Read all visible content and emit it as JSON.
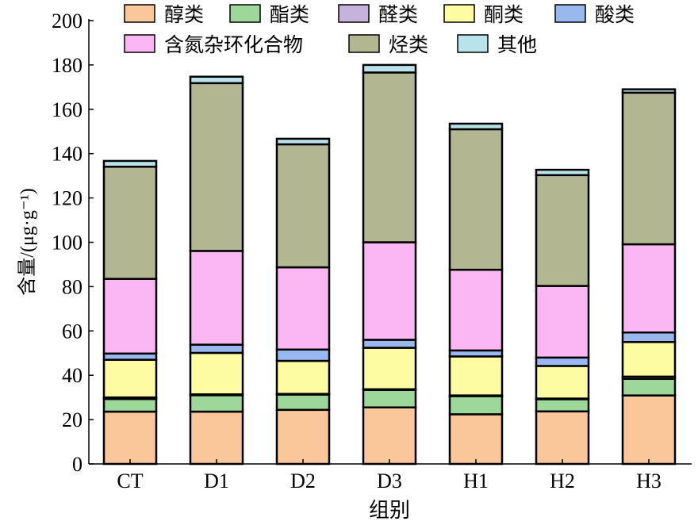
{
  "chart_data": {
    "type": "bar",
    "stacked": true,
    "xlabel": "组别",
    "ylabel": "含量/(μg·g⁻¹)",
    "ylim": [
      0,
      200
    ],
    "yticks": [
      0,
      20,
      40,
      60,
      80,
      100,
      120,
      140,
      160,
      180,
      200
    ],
    "categories": [
      "CT",
      "D1",
      "D2",
      "D3",
      "H1",
      "H2",
      "H3"
    ],
    "legend_position": "top",
    "series": [
      {
        "name": "醇类",
        "color": "#F9C79A",
        "values": [
          23.6,
          23.6,
          24.4,
          25.5,
          22.4,
          23.7,
          30.9
        ]
      },
      {
        "name": "酯类",
        "color": "#9ED79A",
        "values": [
          5.7,
          7.4,
          6.9,
          7.9,
          8.2,
          5.5,
          7.5
        ]
      },
      {
        "name": "醛类",
        "color": "#C6B3DC",
        "values": [
          0.7,
          0.4,
          0.3,
          0.3,
          0.3,
          0.3,
          1.0
        ]
      },
      {
        "name": "酮类",
        "color": "#FDFCA2",
        "values": [
          17.0,
          18.7,
          14.9,
          18.7,
          17.6,
          14.7,
          15.6
        ]
      },
      {
        "name": "酸类",
        "color": "#98B8EF",
        "values": [
          2.8,
          3.7,
          5.1,
          3.6,
          2.7,
          3.8,
          4.3
        ]
      },
      {
        "name": "含氮杂环化合物",
        "color": "#FAB7F4",
        "values": [
          33.7,
          42.3,
          37.1,
          44.0,
          36.4,
          32.3,
          39.8
        ]
      },
      {
        "name": "烃类",
        "color": "#B2B791",
        "values": [
          50.6,
          75.7,
          55.5,
          76.6,
          63.4,
          50.0,
          68.4
        ]
      },
      {
        "name": "其他",
        "color": "#B9E3EA",
        "values": [
          2.6,
          2.9,
          2.5,
          3.4,
          2.5,
          2.4,
          1.5
        ]
      }
    ]
  }
}
